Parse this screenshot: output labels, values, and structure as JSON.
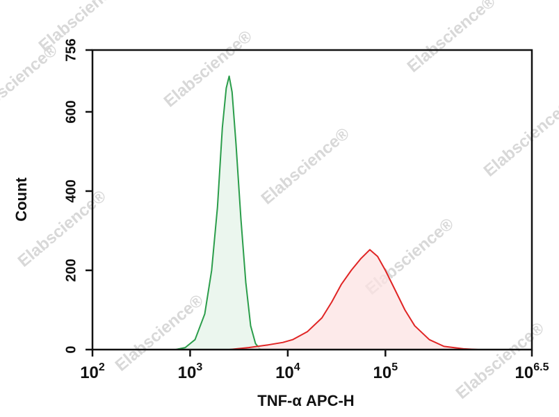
{
  "chart_data": {
    "type": "histogram-overlay",
    "watermark": "Elabscience®",
    "x_label": "TNF-α APC-H",
    "y_label": "Count",
    "xscale": "log",
    "xlim": [
      100,
      3162278
    ],
    "xticks": [
      {
        "value": 100,
        "label": "10",
        "exponent": "2"
      },
      {
        "value": 1000,
        "label": "10",
        "exponent": "3"
      },
      {
        "value": 10000,
        "label": "10",
        "exponent": "4"
      },
      {
        "value": 100000,
        "label": "10",
        "exponent": "5"
      },
      {
        "value": 3162278,
        "label": "10",
        "exponent": "6.5"
      }
    ],
    "ylim": [
      0,
      756
    ],
    "yticks": [
      0,
      200,
      400,
      600,
      756
    ],
    "series": [
      {
        "color": "#2a9d4a",
        "fill": "#e4f3e8",
        "x": [
          708,
          891,
          1122,
          1413,
          1660,
          1905,
          2138,
          2344,
          2512,
          2692,
          2951,
          3311,
          3715,
          4169,
          4677,
          5248
        ],
        "values": [
          0,
          5,
          25,
          90,
          200,
          360,
          560,
          660,
          690,
          650,
          520,
          330,
          170,
          60,
          15,
          0
        ]
      },
      {
        "color": "#e02424",
        "fill": "#fce3e3",
        "x": [
          2512,
          3981,
          6310,
          8913,
          11220,
          15849,
          22387,
          28184,
          35481,
          44668,
          56234,
          69183,
          83176,
          100000,
          125893,
          158489,
          199526,
          281838,
          398107,
          630957,
          891251
        ],
        "values": [
          0,
          5,
          12,
          18,
          25,
          45,
          80,
          120,
          165,
          200,
          230,
          252,
          235,
          200,
          150,
          100,
          60,
          25,
          8,
          2,
          0
        ]
      }
    ]
  }
}
